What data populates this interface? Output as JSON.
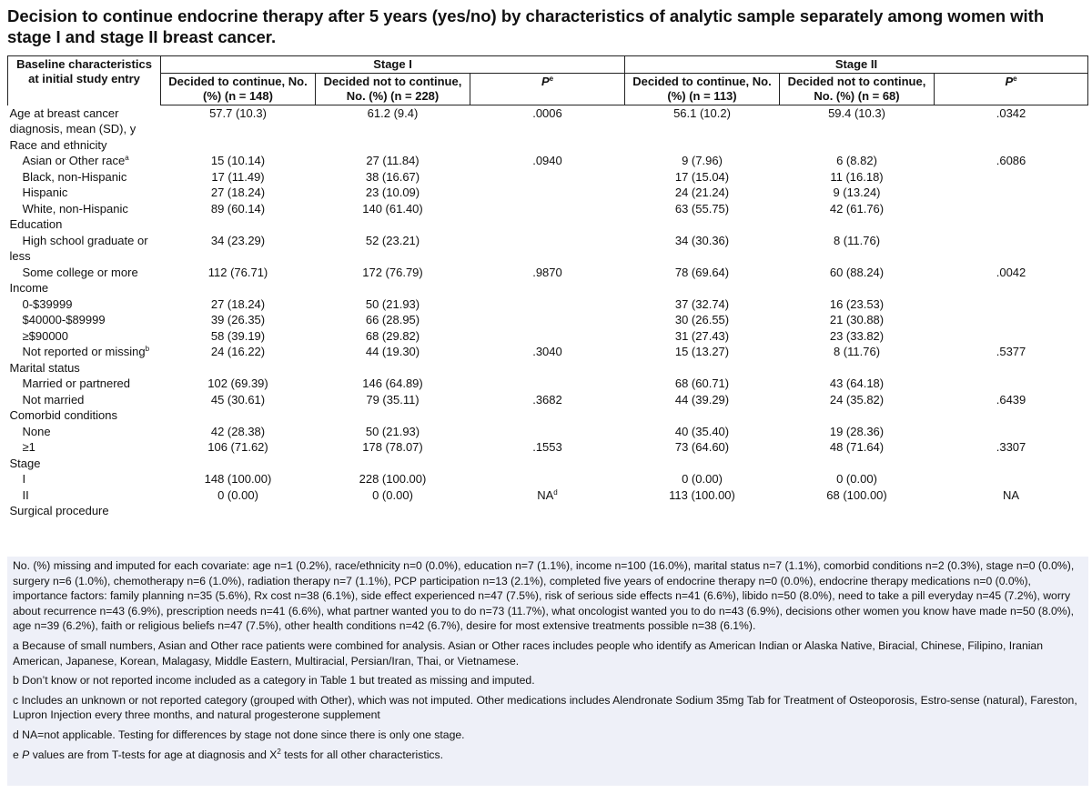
{
  "title": "Decision to continue endocrine therapy after 5 years (yes/no) by characteristics of analytic sample separately among women with stage I and stage II breast cancer.",
  "table": {
    "header": {
      "label": "Baseline characteristics at initial study entry",
      "groups": [
        {
          "name": "Stage I",
          "columns": [
            "Decided to continue, No. (%) (n = 148)",
            "Decided not to continue, No. (%) (n = 228)",
            {
              "text": "P",
              "sup": "e"
            }
          ]
        },
        {
          "name": "Stage II",
          "columns": [
            "Decided to continue, No. (%) (n = 113)",
            "Decided not to continue, No. (%) (n = 68)",
            {
              "text": "P",
              "sup": "e"
            }
          ]
        }
      ]
    },
    "body": [
      {
        "label": "Age at breast cancer diagnosis, mean (SD), y",
        "cells": [
          "57.7 (10.3)",
          "61.2 (9.4)",
          ".0006",
          "56.1 (10.2)",
          "59.4 (10.3)",
          ".0342"
        ]
      },
      {
        "label": "Race and ethnicity",
        "items": [
          {
            "label": {
              "text": "Asian or Other race",
              "sup": "a"
            },
            "cells": [
              "15 (10.14)",
              "27 (11.84)",
              ".0940",
              "9 (7.96)",
              "6 (8.82)",
              ".6086"
            ]
          },
          {
            "label": "Black, non-Hispanic",
            "cells": [
              "17 (11.49)",
              "38 (16.67)",
              null,
              "17 (15.04)",
              "11 (16.18)",
              null
            ]
          },
          {
            "label": "Hispanic",
            "cells": [
              "27 (18.24)",
              "23 (10.09)",
              null,
              "24 (21.24)",
              "9 (13.24)",
              null
            ]
          },
          {
            "label": "White, non-Hispanic",
            "cells": [
              "89 (60.14)",
              "140 (61.40)",
              null,
              "63 (55.75)",
              "42 (61.76)",
              null
            ]
          }
        ]
      },
      {
        "label": "Education",
        "items": [
          {
            "label": "High school graduate or less",
            "cells": [
              "34 (23.29)",
              "52 (23.21)",
              null,
              "34 (30.36)",
              "8 (11.76)",
              null
            ]
          },
          {
            "label": "Some college or more",
            "cells": [
              "112 (76.71)",
              "172 (76.79)",
              ".9870",
              "78 (69.64)",
              "60 (88.24)",
              ".0042"
            ]
          }
        ]
      },
      {
        "label": "Income",
        "items": [
          {
            "label": "0-$39999",
            "cells": [
              "27 (18.24)",
              "50 (21.93)",
              null,
              "37 (32.74)",
              "16 (23.53)",
              null
            ]
          },
          {
            "label": "$40000-$89999",
            "cells": [
              "39 (26.35)",
              "66 (28.95)",
              null,
              "30 (26.55)",
              "21 (30.88)",
              null
            ]
          },
          {
            "label": "≥$90000",
            "cells": [
              "58 (39.19)",
              "68 (29.82)",
              null,
              "31 (27.43)",
              "23 (33.82)",
              null
            ]
          },
          {
            "label": {
              "text": "Not reported or missing",
              "sup": "b"
            },
            "cells": [
              "24 (16.22)",
              "44 (19.30)",
              ".3040",
              "15 (13.27)",
              "8 (11.76)",
              ".5377"
            ]
          }
        ]
      },
      {
        "label": "Marital status",
        "items": [
          {
            "label": "Married or partnered",
            "cells": [
              "102 (69.39)",
              "146 (64.89)",
              null,
              "68 (60.71)",
              "43 (64.18)",
              null
            ]
          },
          {
            "label": "Not married",
            "cells": [
              "45 (30.61)",
              "79 (35.11)",
              ".3682",
              "44 (39.29)",
              "24 (35.82)",
              ".6439"
            ]
          }
        ]
      },
      {
        "label": "Comorbid conditions",
        "items": [
          {
            "label": "None",
            "cells": [
              "42 (28.38)",
              "50 (21.93)",
              null,
              "40 (35.40)",
              "19 (28.36)",
              null
            ]
          },
          {
            "label": "≥1",
            "cells": [
              "106 (71.62)",
              "178 (78.07)",
              ".1553",
              "73 (64.60)",
              "48 (71.64)",
              ".3307"
            ]
          }
        ]
      },
      {
        "label": "Stage",
        "items": [
          {
            "label": "I",
            "cells": [
              "148 (100.00)",
              "228 (100.00)",
              null,
              "0 (0.00)",
              "0 (0.00)",
              null
            ]
          },
          {
            "label": "II",
            "cells": [
              "0 (0.00)",
              "0 (0.00)",
              {
                "text": "NA",
                "sup": "d"
              },
              "113 (100.00)",
              "68 (100.00)",
              "NA"
            ]
          }
        ]
      },
      {
        "label": "Surgical procedure"
      }
    ]
  },
  "notes": {
    "missing": "No. (%) missing and imputed for each covariate: age n=1 (0.2%), race/ethnicity n=0 (0.0%), education n=7 (1.1%), income n=100 (16.0%), marital status n=7 (1.1%), comorbid conditions n=2 (0.3%), stage n=0 (0.0%), surgery n=6 (1.0%), chemotherapy n=6 (1.0%), radiation therapy n=7 (1.1%), PCP participation n=13 (2.1%), completed five years of endocrine therapy n=0 (0.0%), endocrine therapy medications n=0 (0.0%), importance factors: family planning n=35 (5.6%), Rx cost n=38 (6.1%), side effect experienced n=47 (7.5%), risk of serious side effects n=41 (6.6%), libido n=50 (8.0%), need to take a pill everyday n=45 (7.2%), worry about recurrence n=43 (6.9%), prescription needs n=41 (6.6%), what partner wanted you to do n=73 (11.7%), what oncologist wanted you to do n=43 (6.9%), decisions other women you know have made n=50 (8.0%), age n=39 (6.2%), faith or religious beliefs n=47 (7.5%), other health conditions n=42 (6.7%), desire for most extensive treatments possible n=38 (6.1%).",
    "a": "a Because of small numbers, Asian and Other race patients were combined for analysis. Asian or Other races includes people who identify as American Indian or Alaska Native, Biracial, Chinese, Filipino, Iranian American, Japanese, Korean, Malagasy, Middle Eastern, Multiracial, Persian/Iran, Thai, or Vietnamese.",
    "b": "b Don’t know or not reported income included as a category in Table 1 but treated as missing and imputed.",
    "c": "c Includes an unknown or not reported category (grouped with Other), which was not imputed. Other medications includes Alendronate Sodium 35mg Tab for Treatment of Osteoporosis, Estro-sense (natural), Fareston, Lupron Injection every three months, and natural progesterone supplement",
    "d": "d NA=not applicable. Testing for differences by stage not done since there is only one stage.",
    "e": {
      "marker": "e ",
      "italic": "P",
      "text": " values are from T-tests for age at diagnosis and X",
      "sup": "2",
      "rest": " tests for all other characteristics."
    }
  }
}
